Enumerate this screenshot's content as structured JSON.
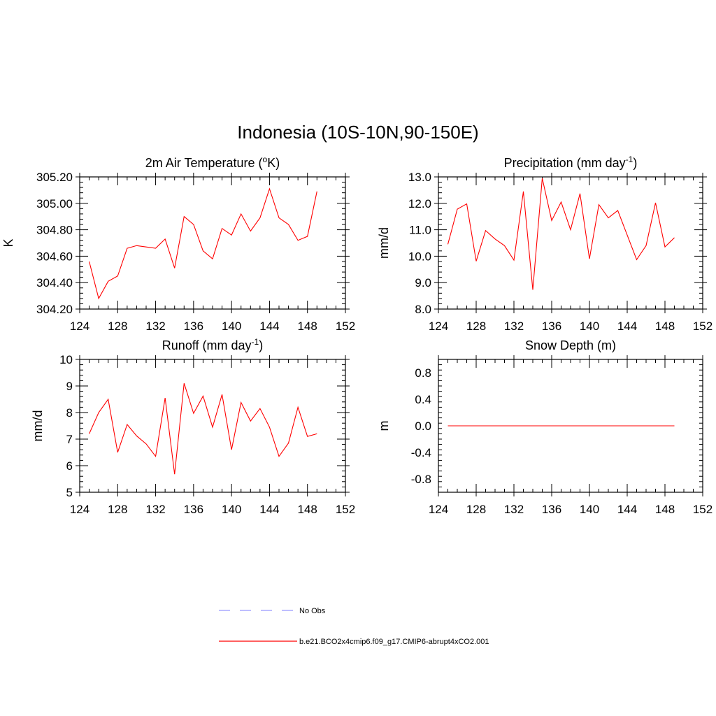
{
  "title": "Indonesia (10S-10N,90-150E)",
  "colors": {
    "model": "#ff0000",
    "obs": "#9999ff",
    "axis": "#000000"
  },
  "legend": {
    "obs_label": "No Obs",
    "model_label": "b.e21.BCO2x4cmip6.f09_g17.CMIP6-abrupt4xCO2.001"
  },
  "chart_data": [
    {
      "id": "temp",
      "type": "line",
      "title_main": "2m Air Temperature (",
      "title_sup": "o",
      "title_end": "K)",
      "ylabel": "K",
      "xlim": [
        124,
        152
      ],
      "ylim": [
        304.2,
        305.2
      ],
      "xticks": [
        124,
        128,
        132,
        136,
        140,
        144,
        148,
        152
      ],
      "yticks": [
        304.2,
        304.4,
        304.6,
        304.8,
        305.0,
        305.2
      ],
      "ytick_labels": [
        "304.20",
        "304.40",
        "304.60",
        "304.80",
        "305.00",
        "305.20"
      ],
      "x": [
        125,
        126,
        127,
        128,
        129,
        130,
        131,
        132,
        133,
        134,
        135,
        136,
        137,
        138,
        139,
        140,
        141,
        142,
        143,
        144,
        145,
        146,
        147,
        148,
        149
      ],
      "series": [
        {
          "name": "b.e21.BCO2x4cmip6.f09_g17.CMIP6-abrupt4xCO2.001",
          "values": [
            304.56,
            304.28,
            304.41,
            304.45,
            304.66,
            304.68,
            304.67,
            304.66,
            304.73,
            304.51,
            304.9,
            304.84,
            304.64,
            304.58,
            304.81,
            304.76,
            304.92,
            304.79,
            304.89,
            305.11,
            304.89,
            304.84,
            304.72,
            304.75,
            305.09
          ]
        }
      ]
    },
    {
      "id": "precip",
      "type": "line",
      "title_main": "Precipitation (mm day",
      "title_sup": "-1",
      "title_end": ")",
      "ylabel": "mm/d",
      "xlim": [
        124,
        152
      ],
      "ylim": [
        8.0,
        13.0
      ],
      "xticks": [
        124,
        128,
        132,
        136,
        140,
        144,
        148,
        152
      ],
      "yticks": [
        8,
        9,
        10,
        11,
        12,
        13
      ],
      "ytick_labels": [
        "8.0",
        "9.0",
        "10.0",
        "11.0",
        "12.0",
        "13.0"
      ],
      "x": [
        125,
        126,
        127,
        128,
        129,
        130,
        131,
        132,
        133,
        134,
        135,
        136,
        137,
        138,
        139,
        140,
        141,
        142,
        143,
        144,
        145,
        146,
        147,
        148,
        149
      ],
      "series": [
        {
          "name": "b.e21.BCO2x4cmip6.f09_g17.CMIP6-abrupt4xCO2.001",
          "values": [
            10.45,
            11.78,
            11.98,
            9.81,
            10.97,
            10.65,
            10.4,
            9.85,
            12.45,
            8.73,
            12.95,
            11.35,
            12.05,
            11.0,
            12.37,
            9.9,
            11.95,
            11.45,
            11.73,
            10.8,
            9.87,
            10.4,
            12.02,
            10.35,
            10.7
          ]
        }
      ]
    },
    {
      "id": "runoff",
      "type": "line",
      "title_main": "Runoff (mm day",
      "title_sup": "-1",
      "title_end": ")",
      "ylabel": "mm/d",
      "xlim": [
        124,
        152
      ],
      "ylim": [
        5,
        10
      ],
      "xticks": [
        124,
        128,
        132,
        136,
        140,
        144,
        148,
        152
      ],
      "yticks": [
        5,
        6,
        7,
        8,
        9,
        10
      ],
      "ytick_labels": [
        "5",
        "6",
        "7",
        "8",
        "9",
        "10"
      ],
      "x": [
        125,
        126,
        127,
        128,
        129,
        130,
        131,
        132,
        133,
        134,
        135,
        136,
        137,
        138,
        139,
        140,
        141,
        142,
        143,
        144,
        145,
        146,
        147,
        148,
        149
      ],
      "series": [
        {
          "name": "b.e21.BCO2x4cmip6.f09_g17.CMIP6-abrupt4xCO2.001",
          "values": [
            7.2,
            8.0,
            8.5,
            6.5,
            7.55,
            7.12,
            6.82,
            6.35,
            8.55,
            5.68,
            9.1,
            7.97,
            8.62,
            7.45,
            8.68,
            6.6,
            8.38,
            7.68,
            8.15,
            7.45,
            6.35,
            6.85,
            8.2,
            7.1,
            7.2
          ]
        }
      ]
    },
    {
      "id": "snow",
      "type": "line",
      "title_main": "Snow Depth (m)",
      "title_sup": "",
      "title_end": "",
      "ylabel": "m",
      "xlim": [
        124,
        152
      ],
      "ylim": [
        -1.0,
        1.0
      ],
      "xticks": [
        124,
        128,
        132,
        136,
        140,
        144,
        148,
        152
      ],
      "yticks": [
        -0.8,
        -0.4,
        0.0,
        0.4,
        0.8
      ],
      "ytick_labels": [
        "-0.8",
        "-0.4",
        "0.0",
        "0.4",
        "0.8"
      ],
      "x": [
        125,
        149
      ],
      "series": [
        {
          "name": "b.e21.BCO2x4cmip6.f09_g17.CMIP6-abrupt4xCO2.001",
          "values": [
            0.0,
            0.0
          ]
        }
      ]
    }
  ]
}
